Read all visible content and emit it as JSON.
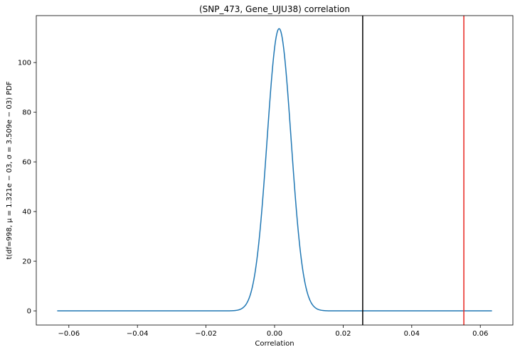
{
  "chart_data": {
    "type": "line",
    "title": "(SNP_473, Gene_UJU38) correlation",
    "xlabel": "Correlation",
    "ylabel": "t(df=998, μ = 1.321e − 03, σ = 3.509e − 03) PDF",
    "xlim": [
      -0.0695,
      0.0695
    ],
    "ylim": [
      -5.7,
      118.9
    ],
    "x_ticks": [
      -0.06,
      -0.04,
      -0.02,
      0.0,
      0.02,
      0.04,
      0.06
    ],
    "x_tick_labels": [
      "−0.06",
      "−0.04",
      "−0.02",
      "0.00",
      "0.02",
      "0.04",
      "0.06"
    ],
    "y_ticks": [
      0,
      20,
      40,
      60,
      80,
      100
    ],
    "y_tick_labels": [
      "0",
      "20",
      "40",
      "60",
      "80",
      "100"
    ],
    "grid": false,
    "series": [
      {
        "color": "#1f77b4",
        "curve": "t-distribution PDF",
        "df": 998,
        "mu": 0.001321,
        "sigma": 0.003509,
        "x_range": [
          -0.0634,
          0.0634
        ]
      }
    ],
    "vertical_lines": [
      {
        "x": 0.0257,
        "color": "#000000"
      },
      {
        "x": 0.0552,
        "color": "#e8251f"
      }
    ]
  }
}
